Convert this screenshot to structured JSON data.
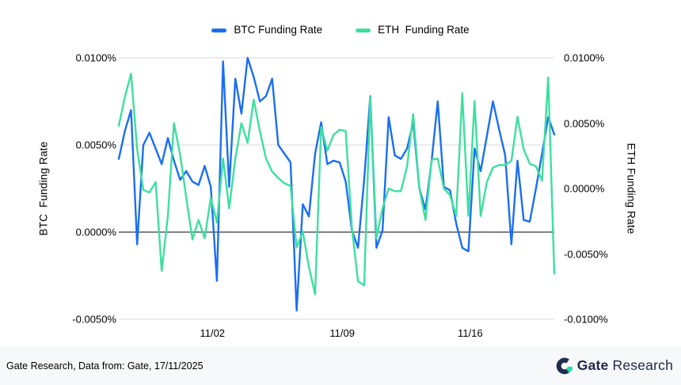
{
  "legend": {
    "items": [
      {
        "label": "BTC Funding Rate"
      },
      {
        "label": "ETH  Funding Rate"
      }
    ]
  },
  "footer": {
    "source_text": "Gate Research, Data from: Gate, 17/11/2025",
    "brand": {
      "name_bold": "Gate",
      "name_regular": "Research",
      "navy": "#212c4e",
      "text_navy": "#1f2747",
      "green": "#17e2a3"
    }
  },
  "colors": {
    "background": "#ffffff",
    "footer_background": "#f7f8fa",
    "grid_line": "#d9d9d9",
    "zero_line": "#58595b",
    "text": "#000000",
    "btc_blue": "#1b6ef3",
    "eth_green": "#3ddf9f"
  },
  "chart_data": {
    "type": "line",
    "unit": "%",
    "series": [
      {
        "name": "BTC Funding Rate",
        "axis": "left",
        "color": "#1b6ef3",
        "values": [
          0.0042,
          0.0058,
          0.007,
          -0.0007,
          0.005,
          0.0057,
          0.0048,
          0.0039,
          0.0054,
          0.0041,
          0.003,
          0.0035,
          0.0029,
          0.0027,
          0.0038,
          0.0026,
          -0.0028,
          0.0098,
          0.0026,
          0.0088,
          0.0068,
          0.01,
          0.0089,
          0.0075,
          0.0078,
          0.0088,
          0.005,
          0.0045,
          0.004,
          -0.0045,
          0.0016,
          0.0009,
          0.0045,
          0.0063,
          0.0039,
          0.0041,
          0.004,
          0.0029,
          0.0001,
          -0.0009,
          0.003,
          0.0078,
          -0.0009,
          0.0001,
          0.0066,
          0.0044,
          0.0042,
          0.0048,
          0.0063,
          0.0025,
          0.0013,
          0.0041,
          0.0075,
          0.0026,
          0.0024,
          0.0005,
          -0.0009,
          -0.0011,
          0.0048,
          0.0035,
          0.0055,
          0.0075,
          0.0059,
          0.0044,
          -0.0007,
          0.0041,
          0.0007,
          0.0006,
          0.0025,
          0.0045,
          0.0066,
          0.0056
        ]
      },
      {
        "name": "ETH  Funding Rate",
        "axis": "right",
        "color": "#3ddf9f",
        "values": [
          0.0048,
          0.007,
          0.0088,
          0.003,
          -0.0001,
          -0.0003,
          0.0005,
          -0.0063,
          -0.0021,
          0.005,
          0.0026,
          -0.0007,
          -0.0039,
          -0.0024,
          -0.0038,
          -0.0007,
          -0.0026,
          0.0023,
          -0.0015,
          0.0023,
          0.005,
          0.0035,
          0.0068,
          0.0044,
          0.0023,
          0.0013,
          0.0008,
          0.0004,
          0.0002,
          -0.0045,
          -0.0033,
          -0.006,
          -0.0081,
          0.0047,
          0.0029,
          0.0041,
          0.0045,
          0.0044,
          -0.003,
          -0.0071,
          -0.0074,
          0.007,
          -0.0038,
          -0.0015,
          0.0,
          -0.0002,
          -0.0002,
          0.0017,
          0.0057,
          0.0,
          -0.0024,
          0.0022,
          0.0023,
          0.0,
          -0.0005,
          -0.0021,
          0.0073,
          -0.0021,
          0.0067,
          -0.0021,
          0.0005,
          0.0016,
          0.0018,
          0.0018,
          0.0021,
          0.0055,
          0.003,
          0.0019,
          0.0017,
          0.0006,
          0.0085,
          -0.0065
        ]
      }
    ],
    "left_axis": {
      "label": "BTC  Funding Rate",
      "min": -0.005,
      "max": 0.01,
      "ticks": [
        {
          "label": "0.0100%",
          "value": 0.01
        },
        {
          "label": "0.0050%",
          "value": 0.005
        },
        {
          "label": "0.0000%",
          "value": 0
        },
        {
          "label": "-0.0050%",
          "value": -0.005
        }
      ]
    },
    "right_axis": {
      "label": "ETH Funding Rate",
      "min": -0.01,
      "max": 0.01,
      "ticks": [
        {
          "label": "0.0100%",
          "value": 0.01
        },
        {
          "label": "0.0050%",
          "value": 0.005
        },
        {
          "label": "0.0000%",
          "value": 0
        },
        {
          "label": "-0.0050%",
          "value": -0.005
        },
        {
          "label": "-0.0100%",
          "value": -0.01
        }
      ]
    },
    "x_axis": {
      "ticks": [
        {
          "label": "11/02",
          "pos": 0.215
        },
        {
          "label": "11/09",
          "pos": 0.513
        },
        {
          "label": "11/16",
          "pos": 0.807
        }
      ]
    },
    "gridlines": [
      {
        "value": 0.01,
        "zero": false
      },
      {
        "value": 0.005,
        "zero": false
      },
      {
        "value": 0,
        "zero": true
      },
      {
        "value": -0.005,
        "zero": false
      }
    ],
    "grid": true,
    "legend_position": "top-center"
  }
}
